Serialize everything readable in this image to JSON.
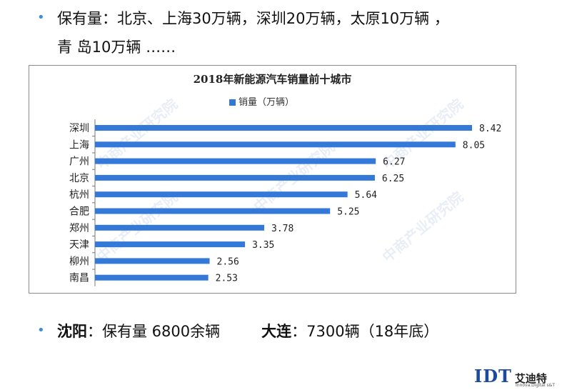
{
  "slide": {
    "line1": "保有量：北京、上海30万辆，深圳20万辆，太原10万辆 ，",
    "line2": "青 岛10万辆  ……",
    "line3_city1": "沈阳",
    "line3_text1": "：保有量 6800余辆",
    "line3_city2": "大连",
    "line3_text2": "：7300辆（18年底）",
    "bullet": "•"
  },
  "watermark": "中商产业研究院",
  "logo": {
    "mark": "IDT",
    "name": "艾迪特",
    "sub": "Innova.Digital s&T"
  },
  "colors": {
    "bar": "#3478d8",
    "bullet": "#3b8fd9",
    "logo": "#1c4a9c"
  },
  "chart_data": {
    "type": "bar",
    "orientation": "horizontal",
    "title": "2018年新能源汽车销量前十城市",
    "legend": "销量（万辆）",
    "legend_position": "top-center",
    "categories": [
      "深圳",
      "上海",
      "广州",
      "北京",
      "杭州",
      "合肥",
      "郑州",
      "天津",
      "柳州",
      "南昌"
    ],
    "series": [
      {
        "name": "销量（万辆）",
        "values": [
          8.42,
          8.05,
          6.27,
          6.25,
          5.64,
          5.25,
          3.78,
          3.35,
          2.56,
          2.53
        ]
      }
    ],
    "value_labels": [
      "8.42",
      "8.05",
      "6.27",
      "6.25",
      "5.64",
      "5.25",
      "3.78",
      "3.35",
      "2.56",
      "2.53"
    ],
    "xlim": [
      0,
      9
    ],
    "grid": false
  }
}
